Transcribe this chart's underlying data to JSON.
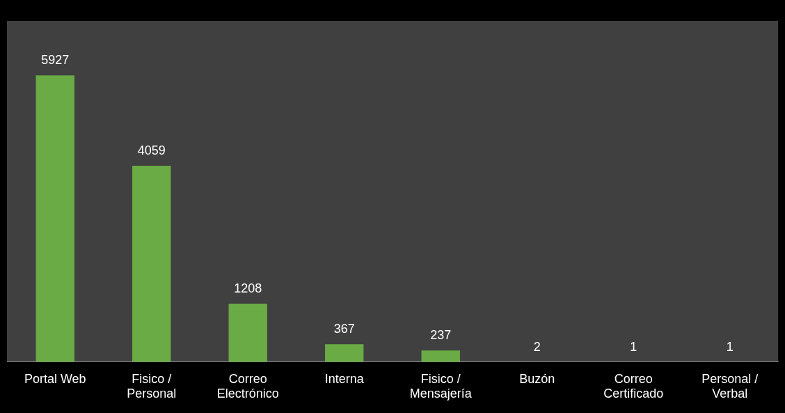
{
  "chart_data": {
    "type": "bar",
    "categories": [
      "Portal Web",
      "Fisico / Personal",
      "Correo Electrónico",
      "Interna",
      "Fisico / Mensajería",
      "Buzón",
      "Correo Certificado",
      "Personal / Verbal"
    ],
    "values": [
      5927,
      4059,
      1208,
      367,
      237,
      2,
      1,
      1
    ],
    "color": "#6aab45",
    "data_labels": true,
    "grid": false,
    "legend": false
  }
}
